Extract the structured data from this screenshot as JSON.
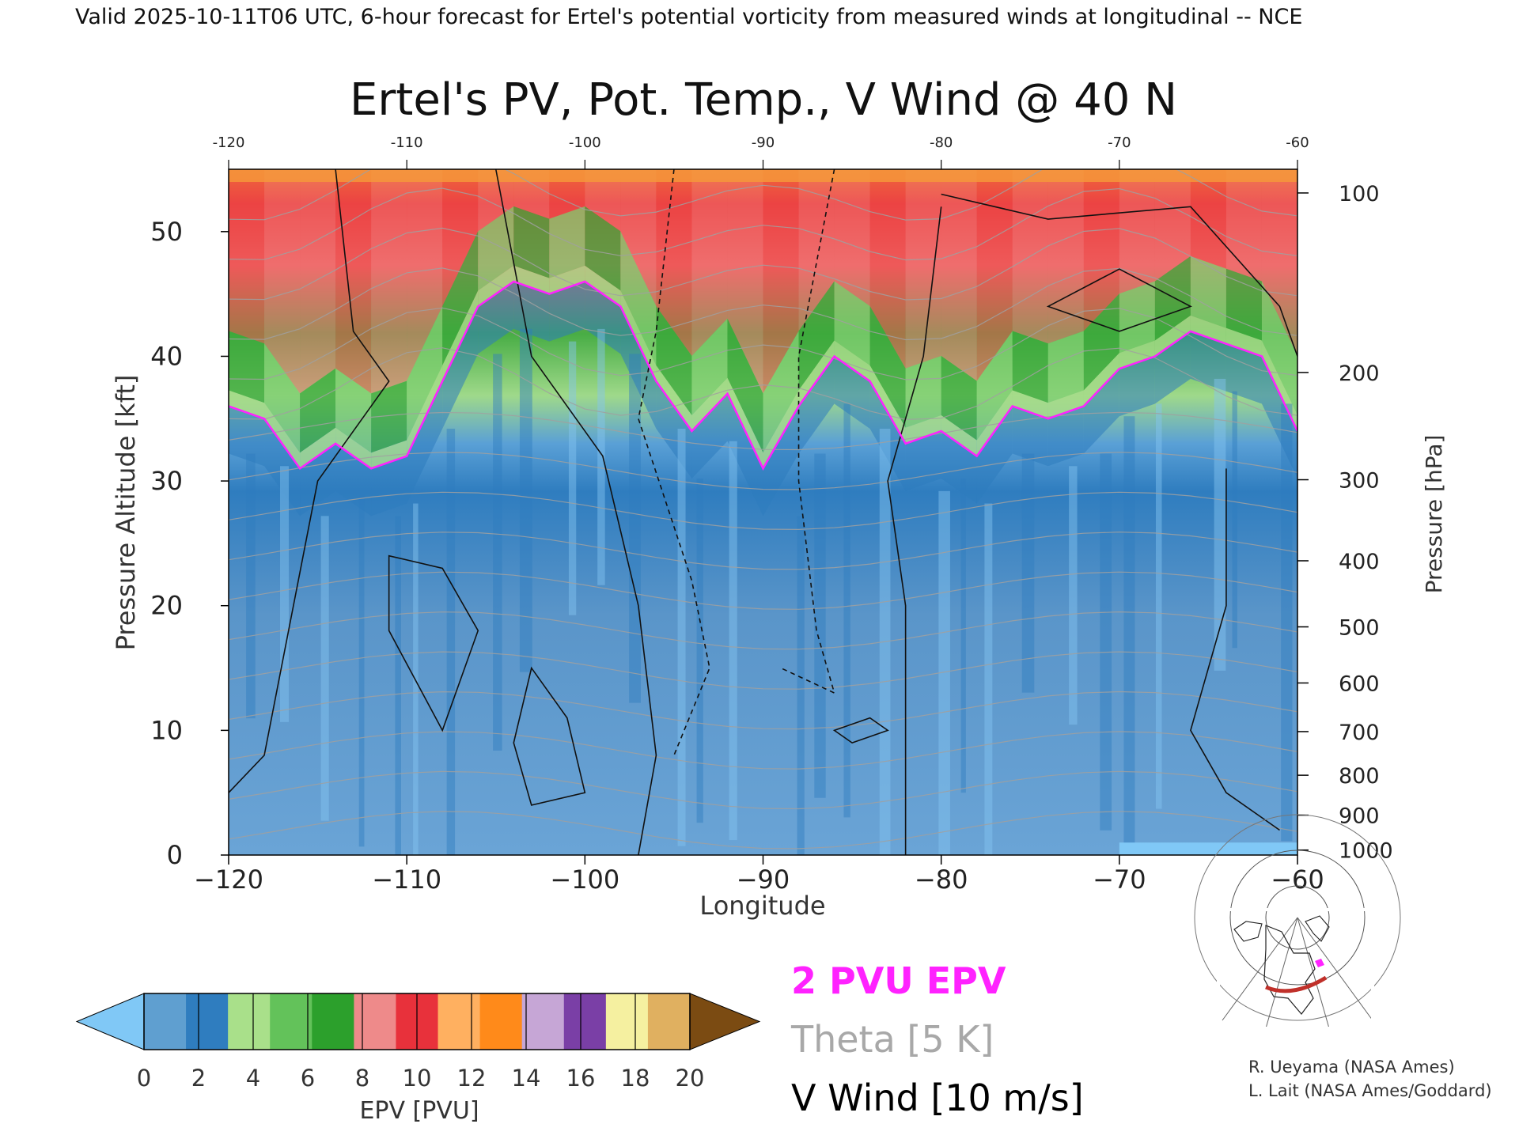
{
  "header_text": "Valid 2025-10-11T06 UTC, 6-hour forecast for Ertel's potential vorticity from measured winds at longitudinal -- NCE",
  "chart_data": {
    "type": "heatmap",
    "title": "Ertel's PV, Pot. Temp., V Wind @ 40 N",
    "xlabel": "Longitude",
    "ylabel_left": "Pressure Altitude [kft]",
    "ylabel_right": "Pressure [hPa]",
    "xlim": [
      -120,
      -60
    ],
    "ylim": [
      0,
      55
    ],
    "x_ticks": [
      -120,
      -110,
      -100,
      -90,
      -80,
      -70,
      -60
    ],
    "x_tick_labels": [
      "−120",
      "−110",
      "−100",
      "−90",
      "−80",
      "−70",
      "−60"
    ],
    "y_ticks": [
      0,
      10,
      20,
      30,
      40,
      50
    ],
    "pressure_ticks": [
      {
        "hpa": "100",
        "kft": 53.1
      },
      {
        "hpa": "200",
        "kft": 38.7
      },
      {
        "hpa": "300",
        "kft": 30.1
      },
      {
        "hpa": "400",
        "kft": 23.6
      },
      {
        "hpa": "500",
        "kft": 18.3
      },
      {
        "hpa": "600",
        "kft": 13.8
      },
      {
        "hpa": "700",
        "kft": 9.9
      },
      {
        "hpa": "800",
        "kft": 6.4
      },
      {
        "hpa": "900",
        "kft": 3.2
      },
      {
        "hpa": "1000",
        "kft": 0.4
      }
    ],
    "pv2_altitude_kft_by_lon": {
      "lon": [
        -120,
        -118,
        -116,
        -114,
        -112,
        -110,
        -108,
        -106,
        -104,
        -102,
        -100,
        -98,
        -96,
        -94,
        -92,
        -90,
        -88,
        -86,
        -84,
        -82,
        -80,
        -78,
        -76,
        -74,
        -72,
        -70,
        -68,
        -66,
        -64,
        -62,
        -60
      ],
      "kft": [
        36,
        35,
        31,
        33,
        31,
        32,
        38,
        44,
        46,
        45,
        46,
        44,
        38,
        34,
        37,
        31,
        36,
        40,
        38,
        33,
        34,
        32,
        36,
        35,
        36,
        39,
        40,
        42,
        41,
        40,
        34
      ]
    },
    "colorbar": {
      "label": "EPV [PVU]",
      "tick_labels": [
        "0",
        "2",
        "4",
        "6",
        "8",
        "10",
        "12",
        "14",
        "16",
        "18",
        "20"
      ],
      "colors": [
        "#5f9fd0",
        "#2f7dbf",
        "#a9e08a",
        "#63c25a",
        "#2ca02c",
        "#ee8a8a",
        "#e8313b",
        "#ffb060",
        "#ff8a1a",
        "#c6a6d6",
        "#7a3fa6",
        "#f5f0a0",
        "#e0b060"
      ],
      "under_color": "#80c8f6",
      "over_color": "#7b4b12"
    },
    "legend": [
      {
        "label": "2 PVU EPV",
        "color": "#ff22ff"
      },
      {
        "label": "Theta [5 K]",
        "color": "#a8a8a8"
      },
      {
        "label": "V Wind [10 m/s]",
        "color": "#000000"
      }
    ]
  },
  "credits": [
    "R. Ueyama (NASA Ames)",
    "L. Lait (NASA Ames/Goddard)"
  ]
}
